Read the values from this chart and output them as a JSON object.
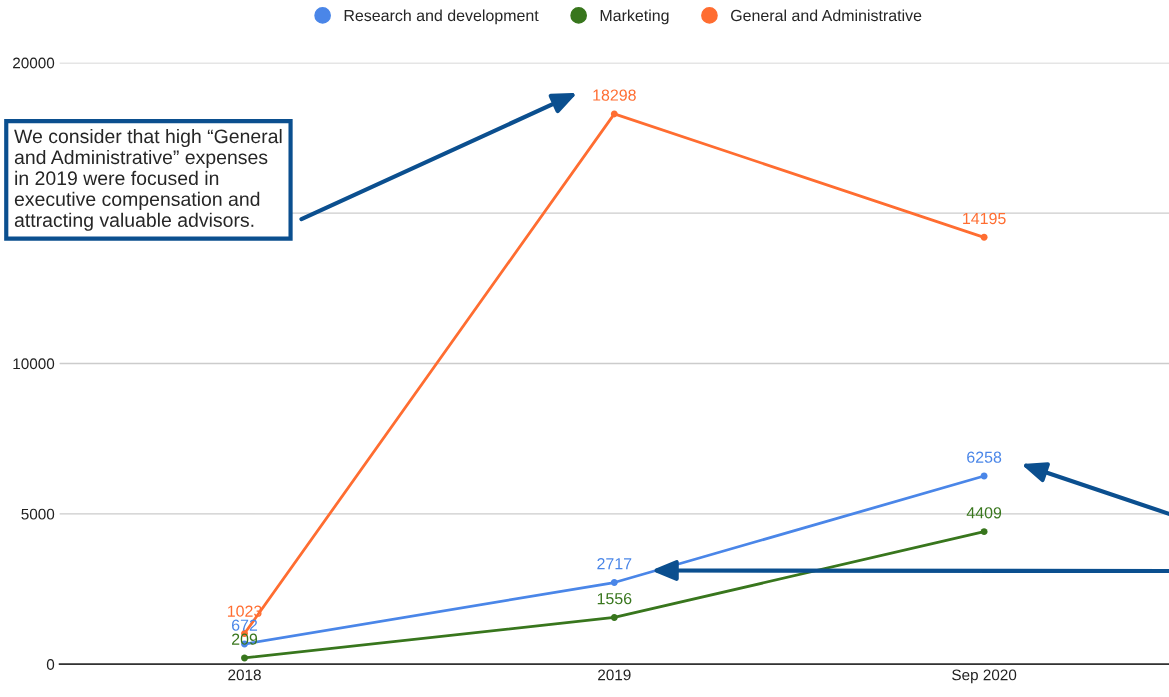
{
  "chart_data": {
    "type": "line",
    "categories": [
      "2018",
      "2019",
      "Sep 2020"
    ],
    "series": [
      {
        "name": "Research and development",
        "color": "#4a86e8",
        "values": [
          672,
          2717,
          6258
        ]
      },
      {
        "name": "Marketing",
        "color": "#38761d",
        "values": [
          209,
          1556,
          4409
        ]
      },
      {
        "name": "General and Administrative",
        "color": "#ff6d31",
        "values": [
          1023,
          18298,
          14195
        ]
      }
    ],
    "ylim": [
      0,
      20000
    ],
    "yticks": [
      0,
      5000,
      10000,
      {
        "value": 15000,
        "label": null
      },
      20000
    ],
    "grid": "y",
    "legend": "top",
    "marker": "circle",
    "line_style": "solid",
    "data_labels": true,
    "annotations": [
      "We consider that high “General\nand Administrative” expenses\nin 2019 were focused in\nexecutive compensation and\nattracting valuable advisors."
    ]
  }
}
